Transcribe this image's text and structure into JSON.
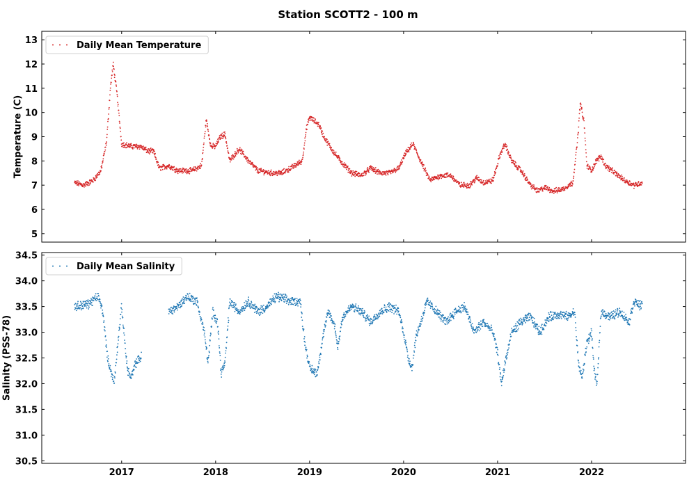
{
  "figure": {
    "title": "Station SCOTT2 - 100 m"
  },
  "chart_data": [
    {
      "type": "scatter",
      "id": "temp",
      "ylabel": "Temperature (C)",
      "xlabel": "",
      "xlim": [
        2016.15,
        2023.0
      ],
      "ylim": [
        4.65,
        13.35
      ],
      "yticks": [
        5,
        6,
        7,
        8,
        9,
        10,
        11,
        12,
        13
      ],
      "xticks": [
        2017,
        2018,
        2019,
        2020,
        2021,
        2022
      ],
      "show_xtick_labels": false,
      "grid": false,
      "legend": "top-left",
      "color": "#d62728",
      "series": [
        {
          "name": "Daily Mean Temperature",
          "x_start": 2016.5,
          "x_end": 2022.54,
          "step_years": 0.00274,
          "keyframes": [
            [
              2016.5,
              7.1
            ],
            [
              2016.6,
              7.0
            ],
            [
              2016.7,
              7.2
            ],
            [
              2016.78,
              7.6
            ],
            [
              2016.84,
              8.8
            ],
            [
              2016.88,
              11.0
            ],
            [
              2016.91,
              12.0
            ],
            [
              2016.95,
              10.8
            ],
            [
              2017.0,
              8.7
            ],
            [
              2017.1,
              8.6
            ],
            [
              2017.2,
              8.6
            ],
            [
              2017.28,
              8.4
            ],
            [
              2017.34,
              8.4
            ],
            [
              2017.4,
              7.7
            ],
            [
              2017.5,
              7.8
            ],
            [
              2017.6,
              7.6
            ],
            [
              2017.75,
              7.6
            ],
            [
              2017.85,
              7.8
            ],
            [
              2017.9,
              9.7
            ],
            [
              2017.95,
              8.6
            ],
            [
              2018.0,
              8.6
            ],
            [
              2018.05,
              9.0
            ],
            [
              2018.1,
              9.1
            ],
            [
              2018.15,
              8.0
            ],
            [
              2018.25,
              8.5
            ],
            [
              2018.35,
              8.0
            ],
            [
              2018.45,
              7.6
            ],
            [
              2018.6,
              7.5
            ],
            [
              2018.7,
              7.5
            ],
            [
              2018.8,
              7.7
            ],
            [
              2018.92,
              8.0
            ],
            [
              2018.97,
              9.4
            ],
            [
              2019.0,
              9.8
            ],
            [
              2019.1,
              9.5
            ],
            [
              2019.15,
              9.0
            ],
            [
              2019.25,
              8.4
            ],
            [
              2019.35,
              7.9
            ],
            [
              2019.45,
              7.5
            ],
            [
              2019.55,
              7.4
            ],
            [
              2019.65,
              7.7
            ],
            [
              2019.75,
              7.5
            ],
            [
              2019.85,
              7.5
            ],
            [
              2019.95,
              7.7
            ],
            [
              2020.02,
              8.3
            ],
            [
              2020.1,
              8.7
            ],
            [
              2020.18,
              8.0
            ],
            [
              2020.28,
              7.2
            ],
            [
              2020.4,
              7.4
            ],
            [
              2020.5,
              7.4
            ],
            [
              2020.6,
              7.0
            ],
            [
              2020.7,
              7.0
            ],
            [
              2020.78,
              7.3
            ],
            [
              2020.85,
              7.1
            ],
            [
              2020.95,
              7.2
            ],
            [
              2021.03,
              8.3
            ],
            [
              2021.08,
              8.7
            ],
            [
              2021.15,
              8.0
            ],
            [
              2021.25,
              7.6
            ],
            [
              2021.35,
              7.0
            ],
            [
              2021.43,
              6.75
            ],
            [
              2021.5,
              6.9
            ],
            [
              2021.6,
              6.75
            ],
            [
              2021.7,
              6.85
            ],
            [
              2021.8,
              7.1
            ],
            [
              2021.85,
              8.8
            ],
            [
              2021.88,
              10.4
            ],
            [
              2021.92,
              9.6
            ],
            [
              2021.95,
              7.8
            ],
            [
              2022.0,
              7.6
            ],
            [
              2022.05,
              8.0
            ],
            [
              2022.1,
              8.2
            ],
            [
              2022.15,
              7.8
            ],
            [
              2022.25,
              7.5
            ],
            [
              2022.35,
              7.2
            ],
            [
              2022.45,
              7.0
            ],
            [
              2022.54,
              7.1
            ]
          ]
        }
      ]
    },
    {
      "type": "scatter",
      "id": "sal",
      "ylabel": "Salinity (PSS-78)",
      "xlabel": "",
      "xlim": [
        2016.15,
        2023.0
      ],
      "ylim": [
        30.45,
        34.55
      ],
      "yticks": [
        30.5,
        31.0,
        31.5,
        32.0,
        32.5,
        33.0,
        33.5,
        34.0,
        34.5
      ],
      "xticks": [
        2017,
        2018,
        2019,
        2020,
        2021,
        2022
      ],
      "show_xtick_labels": true,
      "grid": false,
      "legend": "top-left",
      "color": "#1f77b4",
      "series": [
        {
          "name": "Daily Mean Salinity",
          "x_start": 2016.5,
          "x_end": 2022.54,
          "step_years": 0.00274,
          "gaps": [
            [
              2017.21,
              2017.5
            ]
          ],
          "keyframes": [
            [
              2016.5,
              33.5
            ],
            [
              2016.65,
              33.55
            ],
            [
              2016.75,
              33.7
            ],
            [
              2016.8,
              33.4
            ],
            [
              2016.85,
              32.5
            ],
            [
              2016.92,
              32.0
            ],
            [
              2016.96,
              32.8
            ],
            [
              2017.0,
              33.5
            ],
            [
              2017.06,
              32.3
            ],
            [
              2017.1,
              32.1
            ],
            [
              2017.15,
              32.4
            ],
            [
              2017.2,
              32.5
            ],
            [
              2017.5,
              33.4
            ],
            [
              2017.6,
              33.5
            ],
            [
              2017.7,
              33.7
            ],
            [
              2017.8,
              33.6
            ],
            [
              2017.88,
              33.0
            ],
            [
              2017.92,
              32.4
            ],
            [
              2017.97,
              33.4
            ],
            [
              2018.02,
              33.2
            ],
            [
              2018.06,
              32.2
            ],
            [
              2018.1,
              32.4
            ],
            [
              2018.15,
              33.6
            ],
            [
              2018.25,
              33.4
            ],
            [
              2018.35,
              33.6
            ],
            [
              2018.45,
              33.4
            ],
            [
              2018.55,
              33.5
            ],
            [
              2018.65,
              33.7
            ],
            [
              2018.8,
              33.6
            ],
            [
              2018.9,
              33.6
            ],
            [
              2018.95,
              32.8
            ],
            [
              2019.0,
              32.3
            ],
            [
              2019.08,
              32.2
            ],
            [
              2019.15,
              33.0
            ],
            [
              2019.2,
              33.4
            ],
            [
              2019.27,
              33.1
            ],
            [
              2019.3,
              32.7
            ],
            [
              2019.35,
              33.3
            ],
            [
              2019.45,
              33.5
            ],
            [
              2019.55,
              33.4
            ],
            [
              2019.65,
              33.2
            ],
            [
              2019.75,
              33.4
            ],
            [
              2019.85,
              33.5
            ],
            [
              2019.95,
              33.4
            ],
            [
              2020.0,
              33.0
            ],
            [
              2020.05,
              32.5
            ],
            [
              2020.09,
              32.3
            ],
            [
              2020.13,
              32.9
            ],
            [
              2020.2,
              33.3
            ],
            [
              2020.25,
              33.6
            ],
            [
              2020.35,
              33.4
            ],
            [
              2020.45,
              33.2
            ],
            [
              2020.55,
              33.4
            ],
            [
              2020.65,
              33.5
            ],
            [
              2020.75,
              33.0
            ],
            [
              2020.85,
              33.2
            ],
            [
              2020.95,
              33.0
            ],
            [
              2021.0,
              32.6
            ],
            [
              2021.04,
              32.0
            ],
            [
              2021.08,
              32.4
            ],
            [
              2021.15,
              33.0
            ],
            [
              2021.25,
              33.2
            ],
            [
              2021.35,
              33.3
            ],
            [
              2021.45,
              33.0
            ],
            [
              2021.55,
              33.3
            ],
            [
              2021.65,
              33.35
            ],
            [
              2021.75,
              33.3
            ],
            [
              2021.82,
              33.4
            ],
            [
              2021.86,
              32.4
            ],
            [
              2021.9,
              32.1
            ],
            [
              2021.95,
              32.8
            ],
            [
              2022.0,
              33.0
            ],
            [
              2022.03,
              32.2
            ],
            [
              2022.06,
              32.0
            ],
            [
              2022.1,
              33.4
            ],
            [
              2022.2,
              33.3
            ],
            [
              2022.3,
              33.4
            ],
            [
              2022.4,
              33.2
            ],
            [
              2022.45,
              33.6
            ],
            [
              2022.54,
              33.5
            ]
          ]
        }
      ]
    }
  ]
}
